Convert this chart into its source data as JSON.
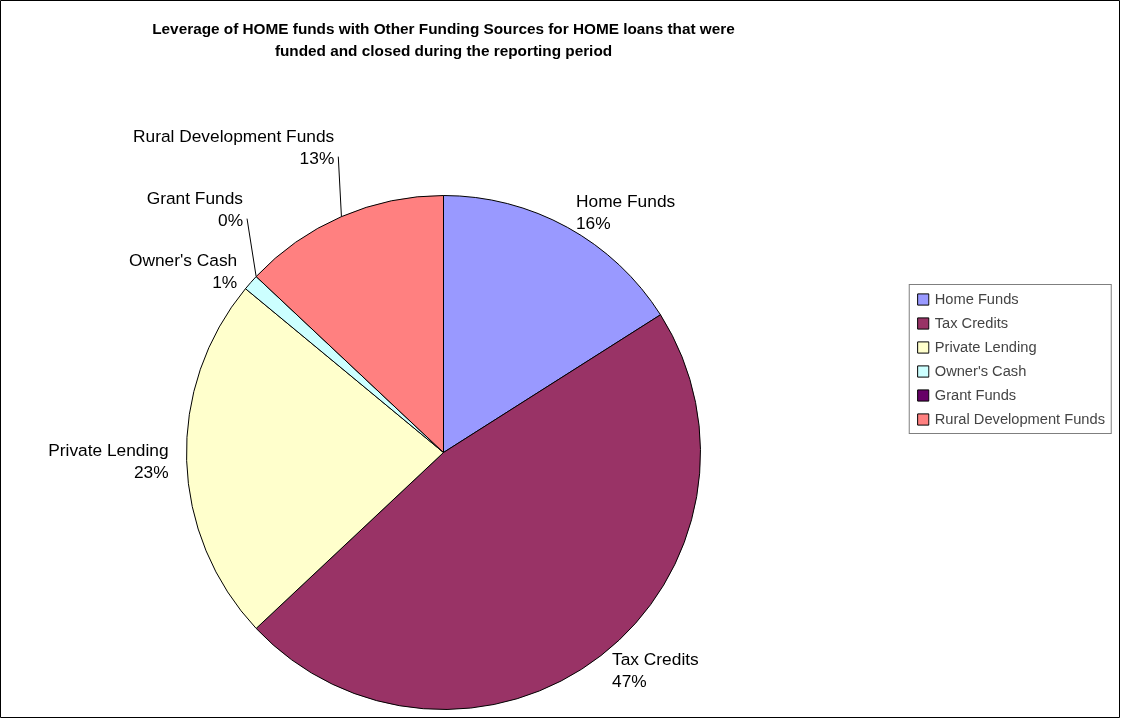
{
  "chart_data": {
    "type": "pie",
    "title": "Leverage of HOME funds with Other Funding Sources for HOME loans that were funded and closed during the reporting period",
    "categories": [
      "Home Funds",
      "Tax Credits",
      "Private Lending",
      "Owner's Cash",
      "Grant Funds",
      "Rural Development Funds"
    ],
    "values": [
      16,
      47,
      23,
      1,
      0,
      13
    ],
    "value_labels": [
      "16%",
      "47%",
      "23%",
      "1%",
      "0%",
      "13%"
    ],
    "colors": [
      "#9999ff",
      "#993366",
      "#ffffcc",
      "#ccffff",
      "#660066",
      "#ff8080"
    ],
    "legend": "right"
  }
}
